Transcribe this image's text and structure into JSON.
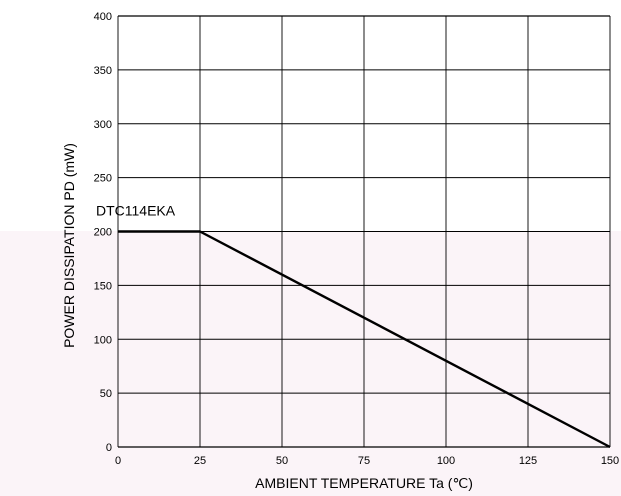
{
  "chart_data": {
    "type": "line",
    "title": "",
    "xlabel": "AMBIENT TEMPERATURE  Ta (℃)",
    "ylabel": "POWER DISSIPATION  PD  (mW)",
    "xlim": [
      0,
      150
    ],
    "ylim": [
      0,
      400
    ],
    "x_ticks": [
      0,
      25,
      50,
      75,
      100,
      125,
      150
    ],
    "y_ticks": [
      0,
      50,
      100,
      150,
      200,
      250,
      300,
      350,
      400
    ],
    "grid": true,
    "legend": "none",
    "series": [
      {
        "name": "DTC114EKA",
        "x": [
          0,
          25,
          150
        ],
        "y": [
          200,
          200,
          0
        ],
        "color": "#000000"
      }
    ],
    "annotations": [
      {
        "text": "DTC114EKA",
        "x": 0,
        "y": 215
      }
    ]
  },
  "colors": {
    "background_upper": "#ffffff",
    "background_lower": "#fbf4f8",
    "grid": "#000000",
    "series": "#000000"
  }
}
